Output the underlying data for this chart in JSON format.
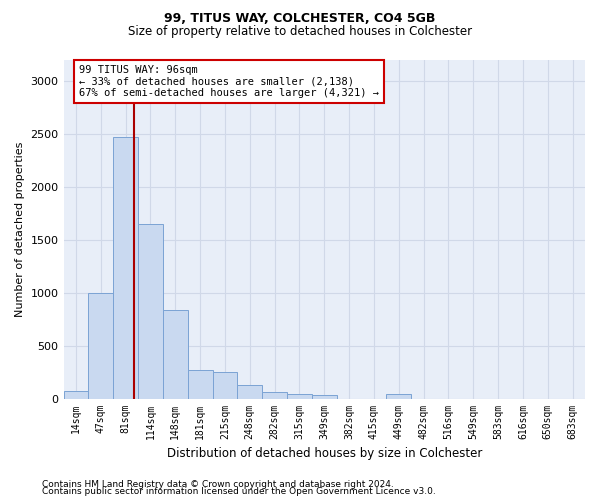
{
  "title1": "99, TITUS WAY, COLCHESTER, CO4 5GB",
  "title2": "Size of property relative to detached houses in Colchester",
  "xlabel": "Distribution of detached houses by size in Colchester",
  "ylabel": "Number of detached properties",
  "footnote1": "Contains HM Land Registry data © Crown copyright and database right 2024.",
  "footnote2": "Contains public sector information licensed under the Open Government Licence v3.0.",
  "bar_labels": [
    "14sqm",
    "47sqm",
    "81sqm",
    "114sqm",
    "148sqm",
    "181sqm",
    "215sqm",
    "248sqm",
    "282sqm",
    "315sqm",
    "349sqm",
    "382sqm",
    "415sqm",
    "449sqm",
    "482sqm",
    "516sqm",
    "549sqm",
    "583sqm",
    "616sqm",
    "650sqm",
    "683sqm"
  ],
  "bar_values": [
    75,
    1000,
    2470,
    1650,
    840,
    270,
    255,
    130,
    60,
    45,
    35,
    0,
    0,
    40,
    0,
    0,
    0,
    0,
    0,
    0,
    0
  ],
  "bar_color": "#c9d9f0",
  "bar_edge_color": "#7ba3d4",
  "grid_color": "#d0d8e8",
  "bg_color": "#e8eef8",
  "property_line_color": "#aa0000",
  "property_line_x": 2.35,
  "annotation_line1": "99 TITUS WAY: 96sqm",
  "annotation_line2": "← 33% of detached houses are smaller (2,138)",
  "annotation_line3": "67% of semi-detached houses are larger (4,321) →",
  "annotation_box_color": "#ffffff",
  "annotation_box_edge": "#cc0000",
  "ylim": [
    0,
    3200
  ],
  "yticks": [
    0,
    500,
    1000,
    1500,
    2000,
    2500,
    3000
  ]
}
